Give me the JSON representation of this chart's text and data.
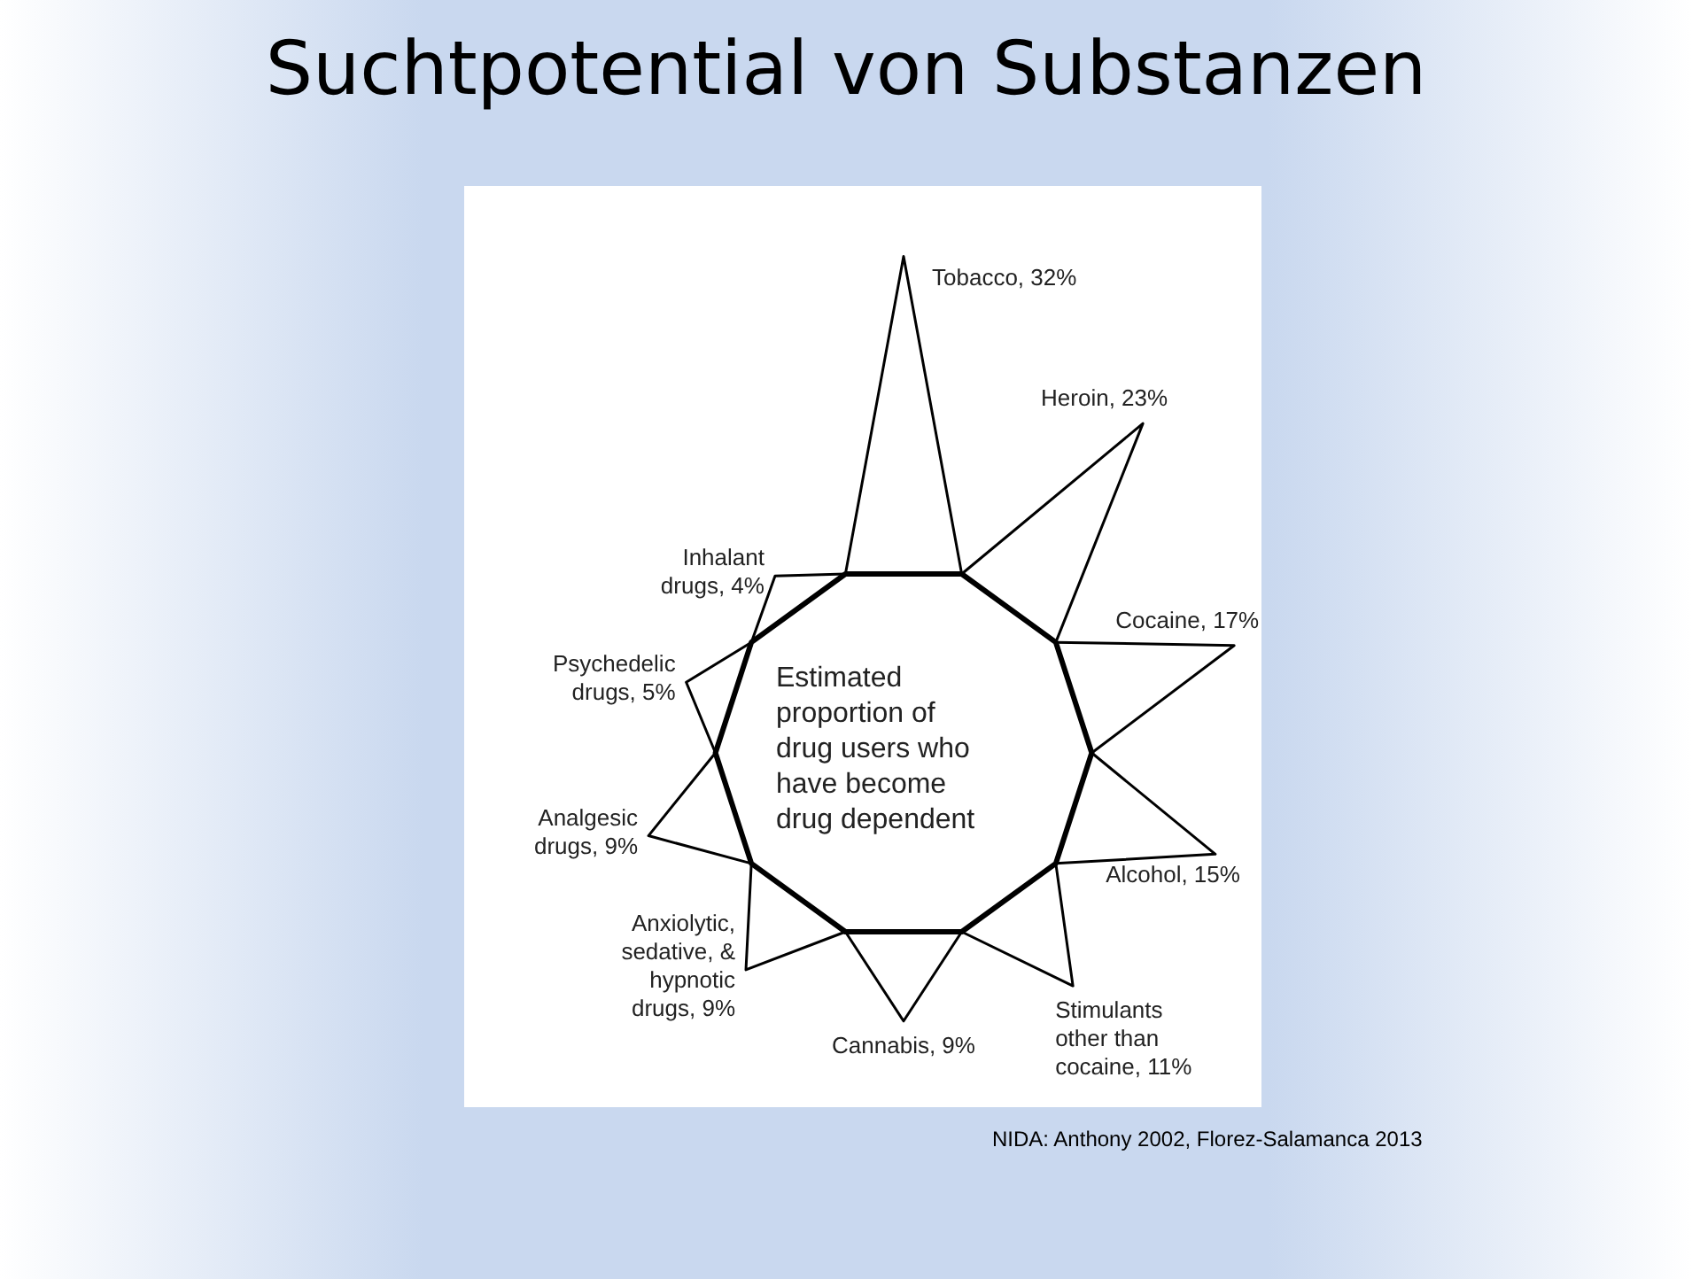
{
  "chart_data": {
    "type": "other",
    "title": "Suchtpotential von Substanzen",
    "subtitle": "Estimated proportion of drug users who have become drug dependent",
    "categories": [
      "Tobacco",
      "Heroin",
      "Cocaine",
      "Alcohol",
      "Stimulants other than cocaine",
      "Cannabis",
      "Anxiolytic, sedative, & hypnotic drugs",
      "Analgesic drugs",
      "Psychedelic drugs",
      "Inhalant drugs"
    ],
    "values": [
      32,
      23,
      17,
      15,
      11,
      9,
      9,
      9,
      5,
      4
    ],
    "value_labels": [
      ", 32%",
      ", 23%",
      ", 17%",
      ", 15%",
      ", 11%",
      ", 9%",
      ", 9%",
      ", 9%",
      ", 5%",
      ", 4%"
    ],
    "annotations": [
      "NIDA: Anthony 2002, Florez-Salamanca 2013"
    ]
  }
}
